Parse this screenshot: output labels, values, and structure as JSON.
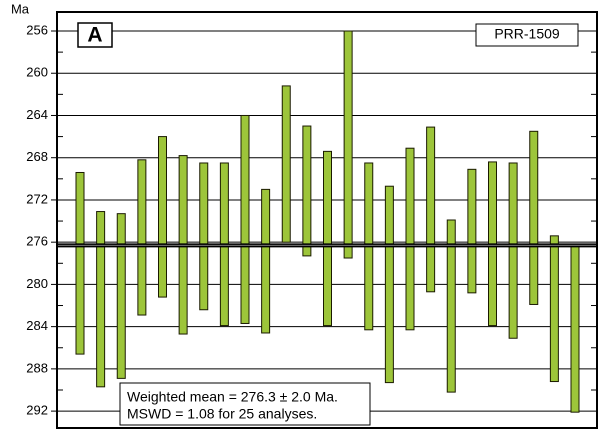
{
  "chart_data": {
    "type": "range_bar",
    "y_label": "Ma",
    "panel_label": "A",
    "sample": "PRR-1509",
    "annotation": [
      "Weighted mean = 276.3 ± 2.0 Ma.",
      "MSWD = 1.08 for 25 analyses."
    ],
    "mean": 276.3,
    "color": "#9dc53a",
    "y_inverted": true,
    "grid": true,
    "ylim": [
      254.2,
      293.6
    ],
    "yticks": [
      256,
      260,
      264,
      268,
      272,
      276,
      280,
      284,
      288,
      292
    ],
    "minor_yticks": [
      258,
      262,
      266,
      270,
      274,
      278,
      282,
      286,
      290
    ],
    "values": [
      [
        269.4,
        286.6
      ],
      [
        273.1,
        289.7
      ],
      [
        273.3,
        288.9
      ],
      [
        268.2,
        282.9
      ],
      [
        266.0,
        281.2
      ],
      [
        267.8,
        284.7
      ],
      [
        268.5,
        282.4
      ],
      [
        268.5,
        283.9
      ],
      [
        264.0,
        283.7
      ],
      [
        271.0,
        284.6
      ],
      [
        261.2,
        276.0
      ],
      [
        265.0,
        277.3
      ],
      [
        267.4,
        283.9
      ],
      [
        256.0,
        277.5
      ],
      [
        268.5,
        284.3
      ],
      [
        270.7,
        289.3
      ],
      [
        267.1,
        284.3
      ],
      [
        265.1,
        280.7
      ],
      [
        273.9,
        290.2
      ],
      [
        269.1,
        280.8
      ],
      [
        268.4,
        283.9
      ],
      [
        268.5,
        285.1
      ],
      [
        265.5,
        281.9
      ],
      [
        275.4,
        289.2
      ],
      [
        276.4,
        292.1
      ]
    ]
  }
}
